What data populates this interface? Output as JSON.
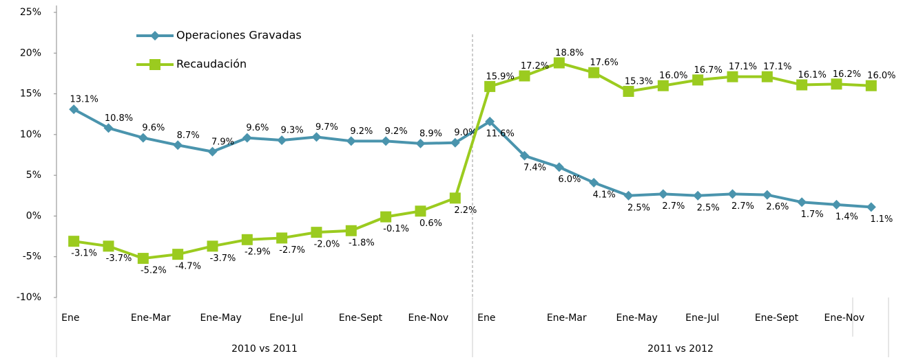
{
  "chart_data": {
    "type": "line",
    "categories": [
      "Ene",
      null,
      "Ene-Mar",
      null,
      "Ene-May",
      null,
      "Ene-Jul",
      null,
      "Ene-Sept",
      null,
      "Ene-Nov",
      null,
      "Ene",
      null,
      "Ene-Mar",
      null,
      "Ene-May",
      null,
      "Ene-Jul",
      null,
      "Ene-Sept",
      null,
      "Ene-Nov",
      null
    ],
    "groups": [
      "2010 vs 2011",
      "2011 vs 2012"
    ],
    "series": [
      {
        "name": "Operaciones Gravadas",
        "color": "#4a94ad",
        "marker": "diamond",
        "values": [
          13.1,
          10.8,
          9.6,
          8.7,
          7.9,
          9.6,
          9.3,
          9.7,
          9.2,
          9.2,
          8.9,
          9.0,
          11.6,
          7.4,
          6.0,
          4.1,
          2.5,
          2.7,
          2.5,
          2.7,
          2.6,
          1.7,
          1.4,
          1.1
        ],
        "value_labels": [
          "13.1%",
          "10.8%",
          "9.6%",
          "8.7%",
          "7.9%",
          "9.6%",
          "9.3%",
          "9.7%",
          "9.2%",
          "9.2%",
          "8.9%",
          "9.0%",
          "11.6%",
          "7.4%",
          "6.0%",
          "4.1%",
          "2.5%",
          "2.7%",
          "2.5%",
          "2.7%",
          "2.6%",
          "1.7%",
          "1.4%",
          "1.1%"
        ]
      },
      {
        "name": "Recaudación",
        "color": "#9bcb1f",
        "marker": "square",
        "values": [
          -3.1,
          -3.7,
          -5.2,
          -4.7,
          -3.7,
          -2.9,
          -2.7,
          -2.0,
          -1.8,
          -0.1,
          0.6,
          2.2,
          15.9,
          17.2,
          18.8,
          17.6,
          15.3,
          16.0,
          16.7,
          17.1,
          17.1,
          16.1,
          16.2,
          16.0
        ],
        "value_labels": [
          "-3.1%",
          "-3.7%",
          "-5.2%",
          "-4.7%",
          "-3.7%",
          "-2.9%",
          "-2.7%",
          "-2.0%",
          "-1.8%",
          "-0.1%",
          "0.6%",
          "2.2%",
          "15.9%",
          "17.2%",
          "18.8%",
          "17.6%",
          "15.3%",
          "16.0%",
          "16.7%",
          "17.1%",
          "17.1%",
          "16.1%",
          "16.2%",
          "16.0%"
        ]
      }
    ],
    "ylim": [
      -10,
      25
    ],
    "yticks": [
      {
        "value": -10,
        "label": "-10%"
      },
      {
        "value": -5,
        "label": "-5%"
      },
      {
        "value": 0,
        "label": "0%"
      },
      {
        "value": 5,
        "label": "5%"
      },
      {
        "value": 10,
        "label": "10%"
      },
      {
        "value": 15,
        "label": "15%"
      },
      {
        "value": 20,
        "label": "20%"
      },
      {
        "value": 25,
        "label": "25%"
      }
    ],
    "legend": "upper left"
  }
}
